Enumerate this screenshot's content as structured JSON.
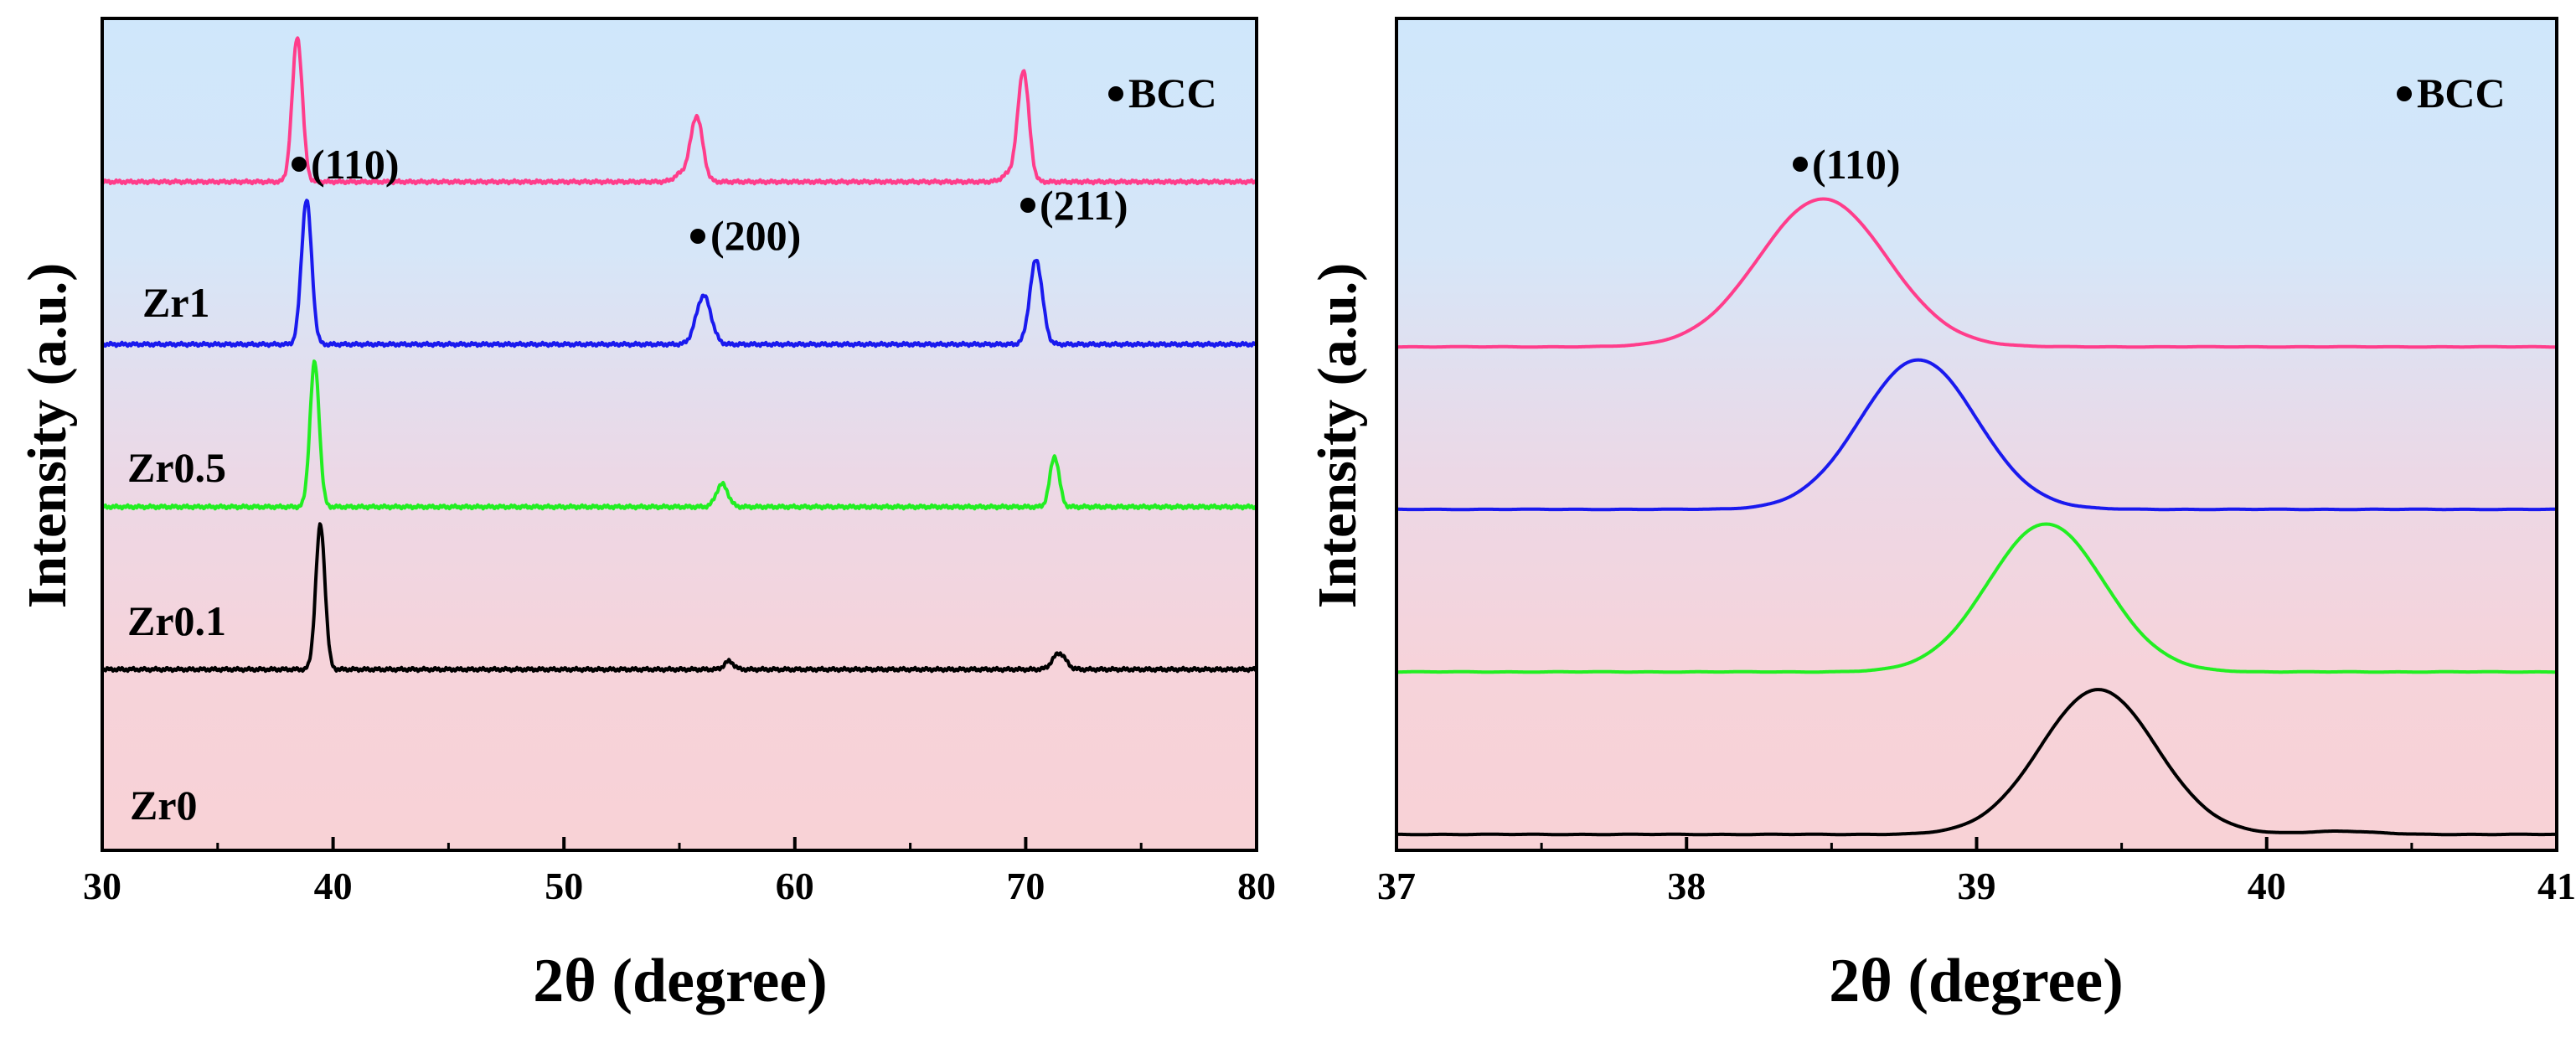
{
  "chart_data": [
    {
      "type": "line",
      "panel": "left",
      "xlabel": "2θ (degree)",
      "ylabel": "Intensity (a.u.)",
      "xlim": [
        30,
        80
      ],
      "xticks": [
        30,
        40,
        50,
        60,
        70,
        80
      ],
      "tick_labels": [
        "30",
        "40",
        "50",
        "60",
        "70",
        "80"
      ],
      "legend": "BCC",
      "legend_marker": "●",
      "annotations": [
        {
          "text": "(110)",
          "x": 38.5
        },
        {
          "text": "(200)",
          "x": 56.0
        },
        {
          "text": "(211)",
          "x": 70.0
        }
      ],
      "series": [
        {
          "name": "Zr1",
          "color": "#ff3d8b",
          "baseline": 1.0,
          "peaks": [
            {
              "pos": 38.45,
              "h": 0.89,
              "w": 0.22
            },
            {
              "pos": 55.75,
              "h": 0.4,
              "w": 0.26
            },
            {
              "pos": 55.1,
              "h": 0.05,
              "w": 0.3
            },
            {
              "pos": 69.9,
              "h": 0.68,
              "w": 0.24
            },
            {
              "pos": 69.3,
              "h": 0.05,
              "w": 0.3
            }
          ]
        },
        {
          "name": "Zr0.5",
          "color": "#1a1aee",
          "baseline": 0.0,
          "peaks": [
            {
              "pos": 38.85,
              "h": 0.89,
              "w": 0.22
            },
            {
              "pos": 56.05,
              "h": 0.3,
              "w": 0.32
            },
            {
              "pos": 70.45,
              "h": 0.52,
              "w": 0.27
            }
          ]
        },
        {
          "name": "Zr0.1",
          "color": "#22ee22",
          "baseline": -1.0,
          "peaks": [
            {
              "pos": 39.2,
              "h": 0.89,
              "w": 0.2
            },
            {
              "pos": 56.85,
              "h": 0.14,
              "w": 0.25
            },
            {
              "pos": 71.25,
              "h": 0.31,
              "w": 0.2
            }
          ]
        },
        {
          "name": "Zr0",
          "color": "#000000",
          "baseline": -2.0,
          "peaks": [
            {
              "pos": 39.45,
              "h": 0.89,
              "w": 0.2
            },
            {
              "pos": 57.15,
              "h": 0.05,
              "w": 0.2
            },
            {
              "pos": 71.45,
              "h": 0.1,
              "w": 0.28
            }
          ]
        }
      ]
    },
    {
      "type": "line",
      "panel": "right",
      "xlabel": "2θ (degree)",
      "ylabel": "Intensity (a.u.)",
      "xlim": [
        37,
        41
      ],
      "xticks": [
        37,
        38,
        39,
        40,
        41
      ],
      "tick_labels": [
        "37",
        "38",
        "39",
        "40",
        "41"
      ],
      "legend": "BCC",
      "legend_marker": "●",
      "annotations": [
        {
          "text": "(110)",
          "x": 38.5
        }
      ],
      "series": [
        {
          "name": "Zr1",
          "color": "#ff3d8b",
          "baseline": 1.0,
          "peaks": [
            {
              "pos": 38.47,
              "h": 0.91,
              "w": 0.22
            }
          ]
        },
        {
          "name": "Zr0.5",
          "color": "#1a1aee",
          "baseline": 0.0,
          "peaks": [
            {
              "pos": 38.8,
              "h": 0.92,
              "w": 0.2
            }
          ]
        },
        {
          "name": "Zr0.1",
          "color": "#22ee22",
          "baseline": -1.0,
          "peaks": [
            {
              "pos": 39.24,
              "h": 0.91,
              "w": 0.2
            }
          ]
        },
        {
          "name": "Zr0",
          "color": "#000000",
          "baseline": -2.0,
          "peaks": [
            {
              "pos": 39.42,
              "h": 0.89,
              "w": 0.2
            },
            {
              "pos": 40.25,
              "h": 0.02,
              "w": 0.12
            }
          ]
        }
      ]
    }
  ]
}
